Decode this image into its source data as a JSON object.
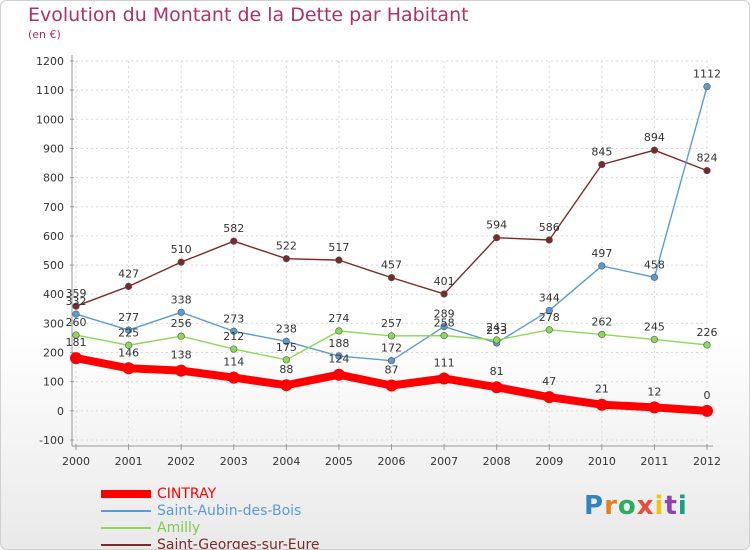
{
  "header": {
    "title": "Evolution du Montant de la Dette par Habitant",
    "subtitle": "(en €)"
  },
  "chart_data": {
    "type": "line",
    "title": "Evolution du Montant de la Dette par Habitant",
    "subtitle": "(en €)",
    "xlabel": "",
    "ylabel": "",
    "x": [
      "2000",
      "2001",
      "2002",
      "2003",
      "2004",
      "2005",
      "2006",
      "2007",
      "2008",
      "2009",
      "2010",
      "2011",
      "2012"
    ],
    "ylim": [
      -100,
      1200
    ],
    "yticks": [
      "-100",
      "0",
      "100",
      "200",
      "300",
      "400",
      "500",
      "600",
      "700",
      "800",
      "900",
      "1000",
      "1100",
      "1200"
    ],
    "grid": true,
    "legend_position": "bottom-left",
    "series": [
      {
        "name": "CINTRAY",
        "color": "#ff0000",
        "values": [
          181,
          146,
          138,
          114,
          88,
          124,
          87,
          111,
          81,
          47,
          21,
          12,
          0
        ],
        "labels": [
          "181",
          "146",
          "138",
          "114",
          "88",
          "124",
          "87",
          "111",
          "81",
          "47",
          "21",
          "12",
          "0"
        ]
      },
      {
        "name": "Saint-Aubin-des-Bois",
        "color": "#5b9bd5",
        "values": [
          332,
          277,
          338,
          273,
          238,
          188,
          172,
          289,
          233,
          344,
          497,
          458,
          1112
        ],
        "labels": [
          "332",
          "277",
          "338",
          "273",
          "238",
          "188",
          "172",
          "289",
          "233",
          "344",
          "497",
          "458",
          "1112"
        ]
      },
      {
        "name": "Amilly",
        "color": "#8ed857",
        "values": [
          260,
          225,
          256,
          212,
          175,
          274,
          257,
          258,
          243,
          278,
          262,
          245,
          226
        ],
        "labels": [
          "260",
          "225",
          "256",
          "212",
          "175",
          "274",
          "257",
          "258",
          "243",
          "278",
          "262",
          "245",
          "226"
        ]
      },
      {
        "name": "Saint-Georges-sur-Eure",
        "color": "#7b2a2a",
        "values": [
          359,
          427,
          510,
          582,
          522,
          517,
          457,
          401,
          594,
          586,
          845,
          894,
          824
        ],
        "labels": [
          "359",
          "427",
          "510",
          "582",
          "522",
          "517",
          "457",
          "401",
          "594",
          "586",
          "845",
          "894",
          "824"
        ]
      }
    ]
  },
  "logo": {
    "text": "Proxiti"
  }
}
